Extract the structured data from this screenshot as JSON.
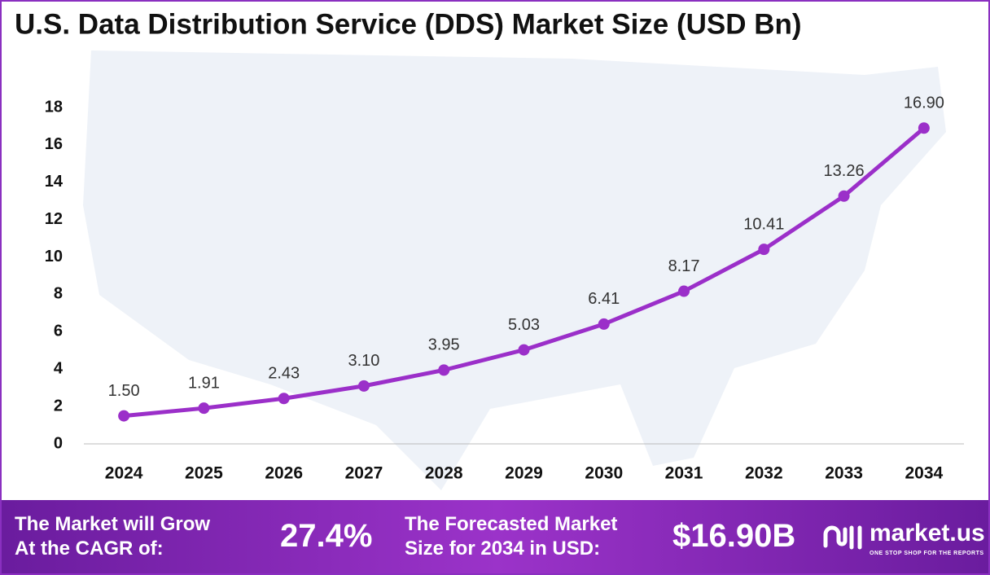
{
  "chart_data": {
    "type": "line",
    "title": "U.S. Data Distribution Service (DDS) Market Size (USD Bn)",
    "categories": [
      "2024",
      "2025",
      "2026",
      "2027",
      "2028",
      "2029",
      "2030",
      "2031",
      "2032",
      "2033",
      "2034"
    ],
    "values": [
      1.5,
      1.91,
      2.43,
      3.1,
      3.95,
      5.03,
      6.41,
      8.17,
      10.41,
      13.26,
      16.9
    ],
    "value_labels": [
      "1.50",
      "1.91",
      "2.43",
      "3.10",
      "3.95",
      "5.03",
      "6.41",
      "8.17",
      "10.41",
      "13.26",
      "16.90"
    ],
    "color": "#9b2fc9",
    "ylim": [
      0,
      18
    ],
    "yticks": [
      0,
      2,
      4,
      6,
      8,
      10,
      12,
      14,
      16,
      18
    ],
    "grid": false
  },
  "footer": {
    "cagr_text": [
      "The Market will Grow",
      "At the CAGR of:"
    ],
    "cagr_value": "27.4%",
    "forecast_text": [
      "The Forecasted Market",
      "Size for 2034 in USD:"
    ],
    "forecast_value": "$16.90B",
    "brand": "market.us",
    "tagline": "ONE STOP SHOP FOR THE REPORTS"
  }
}
